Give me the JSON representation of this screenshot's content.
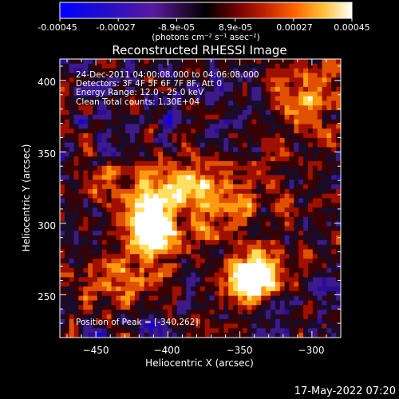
{
  "colorbar": {
    "ticks": [
      "-0.00045",
      "-0.00027",
      "-8.9e-05",
      "8.9e-05",
      "0.00027",
      "0.00045"
    ],
    "unit_label": "(photons cm⁻² s⁻¹ asec⁻²)",
    "range": [
      -0.00045,
      0.00045
    ]
  },
  "chart_data": {
    "type": "heatmap",
    "title": "Reconstructed RHESSI Image",
    "xlabel": "Heliocentric X (arcsec)",
    "ylabel": "Heliocentric Y (arcsec)",
    "xlim": [
      -475,
      -280
    ],
    "ylim": [
      220,
      415
    ],
    "x_ticks": [
      -450,
      -400,
      -350,
      -300
    ],
    "x_tick_labels": [
      "−450",
      "−400",
      "−350",
      "−300"
    ],
    "y_ticks": [
      250,
      300,
      350,
      400
    ],
    "y_tick_labels": [
      "250",
      "300",
      "350",
      "400"
    ],
    "annotations": [
      "24-Dec-2011 04:00:08.000 to 04:06:08.000",
      "Detectors: 3F 4F 5F 6F 7F 8F, Att 0",
      "Energy Range: 12.0 - 25.0 keV",
      "Clean    Total counts: 1.30E+04"
    ],
    "peak_label": "Position of Peak = [-340,262]",
    "peak": [
      -340,
      262
    ],
    "sources": [
      {
        "x": -340,
        "y": 262,
        "sx": 14,
        "sy": 11,
        "amp": 1.0
      },
      {
        "x": -412,
        "y": 300,
        "sx": 12,
        "sy": 20,
        "amp": 0.8
      },
      {
        "x": -368,
        "y": 318,
        "sx": 28,
        "sy": 20,
        "amp": 0.55
      },
      {
        "x": -438,
        "y": 255,
        "sx": 18,
        "sy": 14,
        "amp": 0.4
      },
      {
        "x": -300,
        "y": 385,
        "sx": 20,
        "sy": 25,
        "amp": 0.4
      },
      {
        "x": -435,
        "y": 330,
        "sx": 14,
        "sy": 12,
        "amp": 0.3
      }
    ],
    "colormap": [
      "#0000ff",
      "#2d0a9c",
      "#3c1a8a",
      "#1a0c28",
      "#3a0000",
      "#a01000",
      "#e05000",
      "#ff9a10",
      "#ffe060",
      "#ffffff"
    ]
  },
  "footer": {
    "date": "17-May-2022 07:20"
  }
}
